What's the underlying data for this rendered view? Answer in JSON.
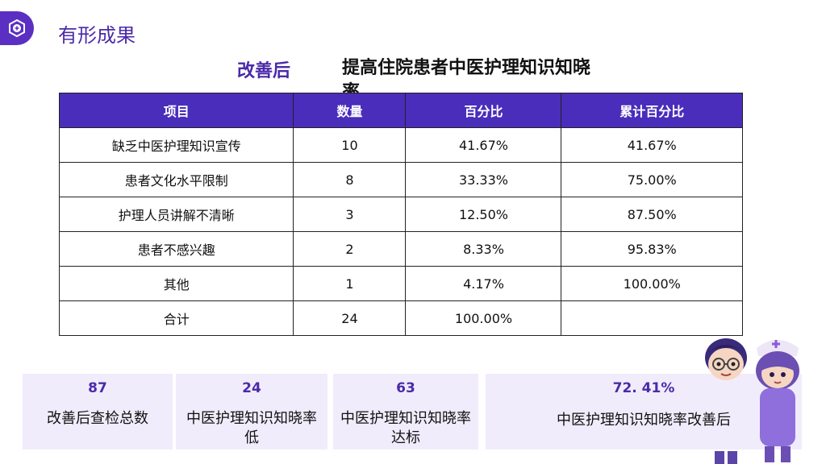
{
  "page": {
    "title": "有形成果",
    "heading_left": "改善后",
    "heading_right": "提高住院患者中医护理知识知晓率"
  },
  "table": {
    "headers": [
      "项目",
      "数量",
      "百分比",
      "累计百分比"
    ],
    "rows": [
      [
        "缺乏中医护理知识宣传",
        "10",
        "41.67%",
        "41.67%"
      ],
      [
        "患者文化水平限制",
        "8",
        "33.33%",
        "75.00%"
      ],
      [
        "护理人员讲解不清晰",
        "3",
        "12.50%",
        "87.50%"
      ],
      [
        "患者不感兴趣",
        "2",
        "8.33%",
        "95.83%"
      ],
      [
        "其他",
        "1",
        "4.17%",
        "100.00%"
      ],
      [
        "合计",
        "24",
        "100.00%",
        ""
      ]
    ]
  },
  "stats": [
    {
      "value": "87",
      "label": "改善后查检总数"
    },
    {
      "value": "24",
      "label": "中医护理知识知晓率低"
    },
    {
      "value": "63",
      "label": "中医护理知识知晓率达标"
    },
    {
      "value": "72. 41%",
      "label": "中医护理知识知晓率改善后"
    }
  ],
  "colors": {
    "accent": "#4a2dbb",
    "card_bg": "#f1ecfb"
  },
  "icons": {
    "logo": "hexagon-plus-icon",
    "illustration": "doctor-nurse-cartoon"
  }
}
